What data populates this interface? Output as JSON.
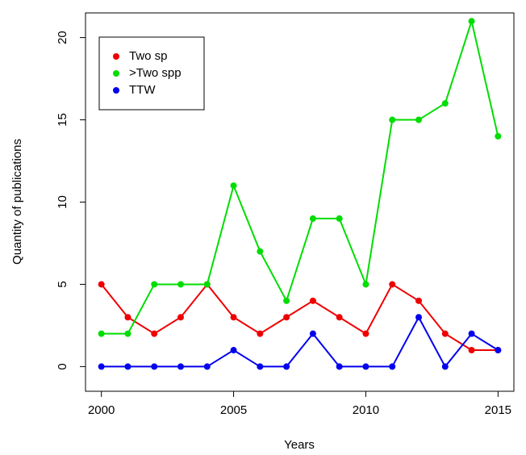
{
  "chart_data": {
    "type": "line",
    "x": [
      2000,
      2001,
      2002,
      2003,
      2004,
      2005,
      2006,
      2007,
      2008,
      2009,
      2010,
      2011,
      2012,
      2013,
      2014,
      2015
    ],
    "series": [
      {
        "name": "Two sp",
        "color": "#ee0000",
        "values": [
          5,
          3,
          2,
          3,
          5,
          3,
          2,
          3,
          4,
          3,
          2,
          5,
          4,
          2,
          1,
          1
        ]
      },
      {
        "name": ">Two spp",
        "color": "#00dd00",
        "values": [
          2,
          2,
          5,
          5,
          5,
          11,
          7,
          4,
          9,
          9,
          5,
          15,
          15,
          16,
          21,
          14
        ]
      },
      {
        "name": "TTW",
        "color": "#0000ee",
        "values": [
          0,
          0,
          0,
          0,
          0,
          1,
          0,
          0,
          2,
          0,
          0,
          0,
          3,
          0,
          2,
          1
        ]
      }
    ],
    "xlabel": "Years",
    "ylabel": "Quantity of publications",
    "xlim": [
      1999.4,
      2015.6
    ],
    "xticks": [
      2000,
      2005,
      2010,
      2015
    ],
    "ylim": [
      -1.5,
      21.5
    ],
    "yticks": [
      0,
      5,
      10,
      15,
      20
    ],
    "legend": "upper left"
  }
}
